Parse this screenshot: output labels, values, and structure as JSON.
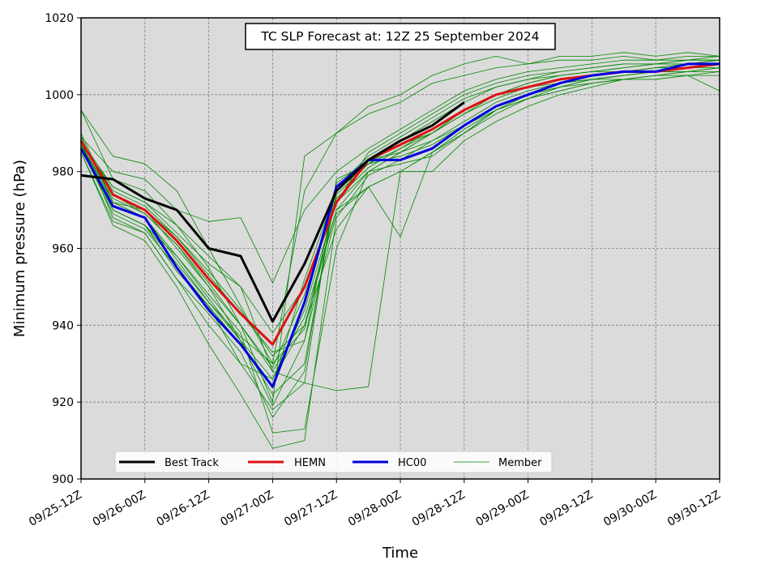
{
  "chart_data": {
    "type": "line",
    "title": "TC SLP Forecast at: 12Z 25 September 2024",
    "xlabel": "Time",
    "ylabel": "Minimum pressure (hPa)",
    "xlim": [
      0,
      120
    ],
    "ylim": [
      900,
      1020
    ],
    "x_tick_values": [
      0,
      12,
      24,
      36,
      48,
      60,
      72,
      84,
      96,
      108,
      120
    ],
    "x_tick_labels": [
      "09/25-12Z",
      "09/26-00Z",
      "09/26-12Z",
      "09/27-00Z",
      "09/27-12Z",
      "09/28-00Z",
      "09/28-12Z",
      "09/29-00Z",
      "09/29-12Z",
      "09/30-00Z",
      "09/30-12Z"
    ],
    "y_ticks": [
      900,
      920,
      940,
      960,
      980,
      1000,
      1020
    ],
    "x_unit_note": "forecast hour from 09/25-12Z",
    "grid": true,
    "legend_position": "lower-left",
    "background": "#dbdbdb",
    "series": [
      {
        "name": "Best Track",
        "color": "#000000",
        "width": 3,
        "x": [
          0,
          6,
          12,
          18,
          24,
          30,
          36,
          42,
          48,
          54,
          60,
          66,
          72
        ],
        "y": [
          979,
          978,
          973,
          970,
          960,
          958,
          941,
          956,
          975,
          983,
          988,
          992,
          998
        ]
      },
      {
        "name": "HEMN",
        "color": "#dd1111",
        "width": 3,
        "x": [
          0,
          6,
          12,
          18,
          24,
          30,
          36,
          42,
          48,
          54,
          60,
          66,
          72,
          78,
          84,
          90,
          96,
          102,
          108,
          114,
          120
        ],
        "y": [
          988,
          974,
          970,
          962,
          952,
          943,
          935,
          950,
          972,
          983,
          987,
          991,
          996,
          1000,
          1002,
          1004,
          1005,
          1006,
          1006,
          1007,
          1008
        ]
      },
      {
        "name": "HC00",
        "color": "#0000dd",
        "width": 3,
        "x": [
          0,
          6,
          12,
          18,
          24,
          30,
          36,
          42,
          48,
          54,
          60,
          66,
          72,
          78,
          84,
          90,
          96,
          102,
          108,
          114,
          120
        ],
        "y": [
          986,
          971,
          968,
          955,
          944,
          935,
          924,
          946,
          976,
          983,
          983,
          986,
          992,
          997,
          1000,
          1003,
          1005,
          1006,
          1006,
          1008,
          1008
        ]
      },
      {
        "name": "Member",
        "color": "#008800",
        "width": 0.8,
        "x": [
          0,
          6,
          12,
          18,
          24,
          30,
          36,
          42,
          48,
          54,
          60,
          66,
          72,
          78,
          84,
          90,
          96,
          102,
          108,
          114,
          120
        ],
        "y": [
          996,
          984,
          982,
          975,
          960,
          945,
          930,
          975,
          990,
          997,
          1000,
          1005,
          1008,
          1010,
          1008,
          1010,
          1010,
          1011,
          1010,
          1011,
          1010
        ]
      }
    ],
    "member_tracks": [
      {
        "x": [
          0,
          6,
          12,
          18,
          24,
          30,
          36,
          42,
          48,
          54,
          60,
          66,
          72,
          78,
          84,
          90,
          96,
          102,
          108,
          114,
          120
        ],
        "y": [
          996,
          978,
          975,
          966,
          955,
          940,
          920,
          984,
          990,
          995,
          998,
          1003,
          1005,
          1007,
          1008,
          1009,
          1009,
          1010,
          1009,
          1010,
          1010
        ]
      },
      {
        "x": [
          0,
          6,
          12,
          18,
          24,
          30,
          36,
          42,
          48,
          54,
          60,
          66,
          72,
          78,
          84,
          90,
          96,
          102,
          108,
          114,
          120
        ],
        "y": [
          990,
          972,
          970,
          960,
          950,
          936,
          922,
          930,
          975,
          983,
          987,
          990,
          996,
          1000,
          1003,
          1005,
          1006,
          1007,
          1008,
          1009,
          1009
        ]
      },
      {
        "x": [
          0,
          6,
          12,
          18,
          24,
          30,
          36,
          42,
          48,
          54,
          60,
          66,
          72,
          78,
          84,
          90,
          96,
          102,
          108,
          114,
          120
        ],
        "y": [
          987,
          970,
          966,
          954,
          945,
          930,
          926,
          940,
          970,
          980,
          985,
          990,
          995,
          1000,
          1002,
          1004,
          1005,
          1006,
          1007,
          1008,
          1008
        ]
      },
      {
        "x": [
          0,
          6,
          12,
          18,
          24,
          30,
          36,
          42,
          48,
          54,
          60,
          66,
          72,
          78,
          84,
          90,
          96,
          102,
          108,
          114,
          120
        ],
        "y": [
          985,
          966,
          962,
          950,
          935,
          922,
          908,
          910,
          968,
          979,
          983,
          988,
          993,
          998,
          1001,
          1003,
          1004,
          1005,
          1006,
          1007,
          1007
        ]
      },
      {
        "x": [
          0,
          6,
          12,
          18,
          24,
          30,
          36,
          42,
          48,
          54,
          60,
          66,
          72,
          78,
          84,
          90,
          96,
          102,
          108,
          114,
          120
        ],
        "y": [
          989,
          972,
          968,
          958,
          948,
          938,
          912,
          913,
          960,
          980,
          985,
          990,
          995,
          999,
          1002,
          1004,
          1005,
          1006,
          1007,
          1008,
          1008
        ]
      },
      {
        "x": [
          0,
          6,
          12,
          18,
          24,
          30,
          36,
          42,
          48,
          54,
          60,
          66,
          72,
          78,
          84,
          90,
          96,
          102,
          108,
          114,
          120
        ],
        "y": [
          988,
          968,
          964,
          952,
          940,
          930,
          918,
          925,
          923,
          924,
          980,
          985,
          990,
          996,
          1000,
          1002,
          1004,
          1005,
          1006,
          1006,
          1007
        ]
      },
      {
        "x": [
          0,
          6,
          12,
          18,
          24,
          30,
          36,
          42,
          48,
          54,
          60,
          66,
          72,
          78,
          84,
          90,
          96,
          102,
          108,
          114,
          120
        ],
        "y": [
          986,
          974,
          970,
          963,
          954,
          944,
          932,
          940,
          965,
          976,
          963,
          985,
          990,
          996,
          1000,
          1002,
          1004,
          1005,
          1006,
          1007,
          1008
        ]
      },
      {
        "x": [
          0,
          6,
          12,
          18,
          24,
          30,
          36,
          42,
          48,
          54,
          60,
          66,
          72,
          78,
          84,
          90,
          96,
          102,
          108,
          114,
          120
        ],
        "y": [
          987,
          976,
          972,
          966,
          958,
          950,
          938,
          950,
          972,
          985,
          990,
          995,
          1000,
          1003,
          1005,
          1006,
          1007,
          1008,
          1008,
          1008,
          1009
        ]
      },
      {
        "x": [
          0,
          6,
          12,
          18,
          24,
          30,
          36,
          42,
          48,
          54,
          60,
          66,
          72,
          78,
          84,
          90,
          96,
          102,
          108,
          114,
          120
        ],
        "y": [
          989,
          980,
          978,
          970,
          967,
          968,
          951,
          970,
          980,
          986,
          991,
          996,
          1001,
          1004,
          1006,
          1007,
          1008,
          1009,
          1009,
          1009,
          1010
        ]
      },
      {
        "x": [
          0,
          6,
          12,
          18,
          24,
          30,
          36,
          42,
          48,
          54,
          60,
          66,
          72,
          78,
          84,
          90,
          96,
          102,
          108,
          114,
          120
        ],
        "y": [
          988,
          976,
          972,
          964,
          956,
          950,
          928,
          925,
          978,
          982,
          988,
          993,
          998,
          1002,
          1004,
          1005,
          1006,
          1007,
          1008,
          1008,
          1009
        ]
      },
      {
        "x": [
          0,
          6,
          12,
          18,
          24,
          30,
          36,
          42,
          48,
          54,
          60,
          66,
          72,
          78,
          84,
          90,
          96,
          102,
          108,
          114,
          120
        ],
        "y": [
          987,
          973,
          969,
          961,
          951,
          940,
          928,
          942,
          970,
          976,
          980,
          980,
          988,
          993,
          997,
          1000,
          1002,
          1004,
          1005,
          1005,
          1006
        ]
      },
      {
        "x": [
          0,
          6,
          12,
          18,
          24,
          30,
          36,
          42,
          48,
          54,
          60,
          66,
          72,
          78,
          84,
          90,
          96,
          102,
          108,
          114,
          120
        ],
        "y": [
          986,
          970,
          966,
          958,
          947,
          936,
          926,
          944,
          972,
          980,
          982,
          984,
          990,
          995,
          999,
          1001,
          1003,
          1004,
          1005,
          1006,
          1006
        ]
      },
      {
        "x": [
          0,
          6,
          12,
          18,
          24,
          30,
          36,
          42,
          48,
          54,
          60,
          66,
          72,
          78,
          84,
          90,
          96,
          102,
          108,
          114,
          120
        ],
        "y": [
          988,
          975,
          971,
          963,
          953,
          943,
          933,
          936,
          976,
          984,
          989,
          994,
          999,
          1002,
          1004,
          1006,
          1007,
          1008,
          1008,
          1009,
          1009
        ]
      },
      {
        "x": [
          0,
          6,
          12,
          18,
          24,
          30,
          36,
          42,
          48,
          54,
          60,
          66,
          72,
          78,
          84,
          90,
          96,
          102,
          108,
          114,
          120
        ],
        "y": [
          985,
          967,
          964,
          952,
          943,
          933,
          916,
          928,
          977,
          983,
          985,
          988,
          992,
          996,
          999,
          1002,
          1003,
          1004,
          1004,
          1005,
          1005
        ]
      },
      {
        "x": [
          0,
          6,
          12,
          18,
          24,
          30,
          36,
          42,
          48,
          54,
          60,
          66,
          72,
          78,
          84,
          90,
          96,
          102,
          108,
          114,
          120
        ],
        "y": [
          987,
          972,
          968,
          957,
          946,
          937,
          930,
          939,
          974,
          982,
          986,
          991,
          996,
          1000,
          1002,
          1003,
          1004,
          1004,
          1004,
          1005,
          1001
        ]
      },
      {
        "x": [
          0,
          6,
          12,
          18,
          24,
          30,
          36,
          42,
          48,
          54,
          60,
          66,
          72,
          78,
          84,
          90,
          96,
          102,
          108,
          114,
          120
        ],
        "y": [
          986,
          969,
          965,
          955,
          945,
          935,
          924,
          952,
          975,
          982,
          984,
          987,
          992,
          997,
          1000,
          1003,
          1004,
          1005,
          1006,
          1006,
          1007
        ]
      },
      {
        "x": [
          0,
          6,
          12,
          18,
          24,
          30,
          36,
          42,
          48,
          54,
          60,
          66,
          72,
          78,
          84,
          90,
          96,
          102,
          108,
          114,
          120
        ],
        "y": [
          988,
          974,
          969,
          961,
          950,
          940,
          929,
          948,
          973,
          981,
          986,
          990,
          996,
          1000,
          1003,
          1005,
          1006,
          1006,
          1007,
          1007,
          1008
        ]
      },
      {
        "x": [
          0,
          6,
          12,
          18,
          24,
          30,
          36,
          42,
          48,
          54,
          60,
          66,
          72,
          78,
          84,
          90,
          96,
          102,
          108,
          114,
          120
        ],
        "y": [
          986,
          970,
          966,
          956,
          946,
          936,
          919,
          936,
          969,
          976,
          980,
          985,
          991,
          996,
          999,
          1001,
          1003,
          1004,
          1005,
          1006,
          1007
        ]
      }
    ]
  },
  "legend": {
    "best_track_label": "Best Track",
    "hemn_label": "HEMN",
    "hc00_label": "HC00",
    "member_label": "Member"
  }
}
